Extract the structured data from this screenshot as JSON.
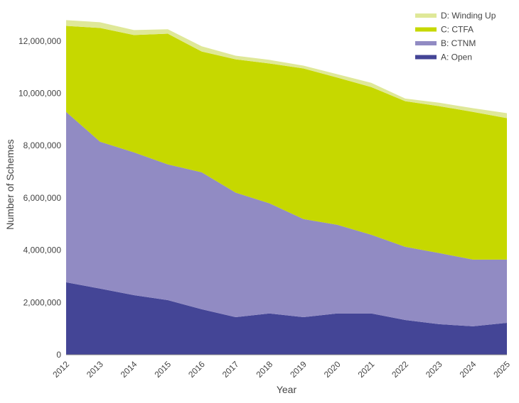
{
  "chart_data": {
    "type": "area",
    "stacked": true,
    "xlabel": "Year",
    "ylabel": "Number of Schemes",
    "ylim": [
      0,
      13000000
    ],
    "yticks": [
      0,
      2000000,
      4000000,
      6000000,
      8000000,
      10000000,
      12000000
    ],
    "ytick_labels": [
      "0",
      "2,000,000",
      "4,000,000",
      "6,000,000",
      "8,000,000",
      "10,000,000",
      "12,000,000"
    ],
    "x": [
      "2012",
      "2013",
      "2014",
      "2015",
      "2016",
      "2017",
      "2018",
      "2019",
      "2020",
      "2021",
      "2022",
      "2023",
      "2024",
      "2025"
    ],
    "grid": false,
    "legend_position": "top-right",
    "series": [
      {
        "name": "A: Open",
        "color": "#444596",
        "values": [
          2770000,
          2530000,
          2280000,
          2090000,
          1740000,
          1440000,
          1580000,
          1440000,
          1580000,
          1580000,
          1330000,
          1170000,
          1090000,
          1220000
        ]
      },
      {
        "name": "B: CTNM",
        "color": "#918bc3",
        "values": [
          6520000,
          5620000,
          5460000,
          5190000,
          5240000,
          4760000,
          4210000,
          3750000,
          3390000,
          3010000,
          2800000,
          2720000,
          2550000,
          2420000
        ]
      },
      {
        "name": "C: CTFA",
        "color": "#c6d800",
        "values": [
          3290000,
          4350000,
          4490000,
          5000000,
          4620000,
          5100000,
          5350000,
          5760000,
          5630000,
          5650000,
          5570000,
          5620000,
          5650000,
          5410000
        ]
      },
      {
        "name": "D: Winding Up",
        "color": "#dfe898",
        "values": [
          220000,
          220000,
          190000,
          170000,
          200000,
          140000,
          140000,
          110000,
          130000,
          160000,
          100000,
          130000,
          140000,
          190000
        ]
      }
    ]
  }
}
